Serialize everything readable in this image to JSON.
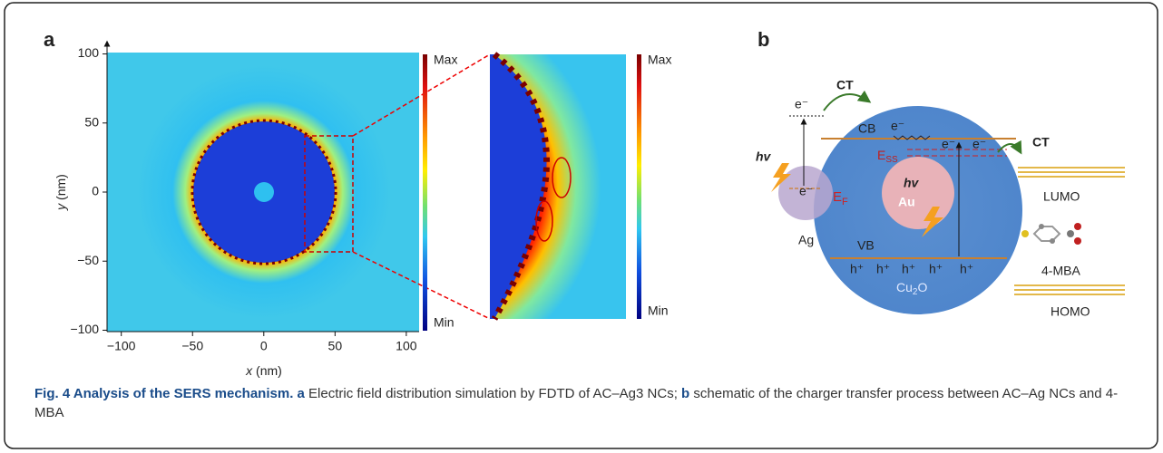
{
  "panel_a": {
    "label": "a",
    "x_label": {
      "var": "x",
      "unit": " (nm)"
    },
    "y_label": {
      "var": "y",
      "unit": " (nm)"
    },
    "xlim": [
      -110,
      109
    ],
    "ylim": [
      -101,
      101
    ],
    "xticks": [
      {
        "value": -100,
        "label": "−100"
      },
      {
        "value": -50,
        "label": "−50"
      },
      0,
      50,
      100
    ],
    "yticks": [
      {
        "value": -100,
        "label": "−100"
      },
      {
        "value": -50,
        "label": "−50"
      },
      0,
      50,
      100
    ],
    "colorbar": {
      "max": "Max",
      "min": "Min"
    },
    "zoom_colorbar": {
      "max": "Max",
      "min": "Min"
    }
  },
  "panel_b": {
    "label": "b",
    "ag_electron": "e⁻",
    "ct_left": "CT",
    "hv_left": "hv",
    "cb": "CB",
    "cb_electron": "e⁻",
    "ess": {
      "base": "E",
      "sub": "SS"
    },
    "ef": {
      "base": "E",
      "sub": "F"
    },
    "ef_electron": "e⁻",
    "trap_electrons": [
      "e⁻",
      "e⁻"
    ],
    "ag": "Ag",
    "au": "Au",
    "hv_right": "hv",
    "vb": "VB",
    "holes": [
      "h⁺",
      "h⁺",
      "h⁺",
      "h⁺",
      "h⁺"
    ],
    "cu2o": {
      "base": "Cu",
      "sub": "2",
      "tail": "O"
    },
    "ct_right": "CT",
    "lumo": "LUMO",
    "molecule": "4-MBA",
    "homo": "HOMO"
  },
  "caption": {
    "title": "Fig. 4 Analysis of the SERS mechanism.",
    "a": "a",
    "a_text": "Electric field distribution simulation by FDTD of AC–Ag3 NCs;",
    "b": "b",
    "b_text": "schematic of the charger transfer process between AC–Ag NCs and 4-MBA"
  }
}
